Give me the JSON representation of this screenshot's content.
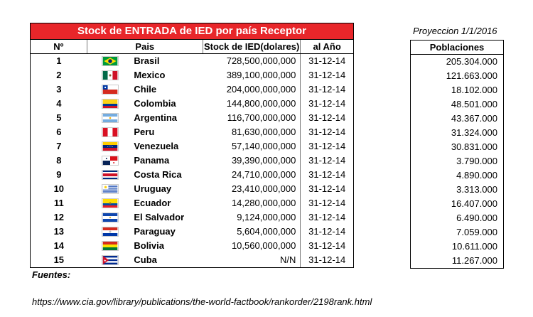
{
  "title": "Stock de ENTRADA de IED por país Receptor",
  "headers": {
    "num": "Nº",
    "pais": "Pais",
    "stock": "Stock de IED(dolares)",
    "anio": "al Año"
  },
  "rows": [
    {
      "num": "1",
      "pais": "Brasil",
      "flag": "brazil-flag-icon",
      "stock": "728,500,000,000",
      "anio": "31-12-14"
    },
    {
      "num": "2",
      "pais": "Mexico",
      "flag": "mexico-flag-icon",
      "stock": "389,100,000,000",
      "anio": "31-12-14"
    },
    {
      "num": "3",
      "pais": "Chile",
      "flag": "chile-flag-icon",
      "stock": "204,000,000,000",
      "anio": "31-12-14"
    },
    {
      "num": "4",
      "pais": "Colombia",
      "flag": "colombia-flag-icon",
      "stock": "144,800,000,000",
      "anio": "31-12-14"
    },
    {
      "num": "5",
      "pais": "Argentina",
      "flag": "argentina-flag-icon",
      "stock": "116,700,000,000",
      "anio": "31-12-14"
    },
    {
      "num": "6",
      "pais": "Peru",
      "flag": "peru-flag-icon",
      "stock": "81,630,000,000",
      "anio": "31-12-14"
    },
    {
      "num": "7",
      "pais": "Venezuela",
      "flag": "venezuela-flag-icon",
      "stock": "57,140,000,000",
      "anio": "31-12-14"
    },
    {
      "num": "8",
      "pais": "Panama",
      "flag": "panama-flag-icon",
      "stock": "39,390,000,000",
      "anio": "31-12-14"
    },
    {
      "num": "9",
      "pais": "Costa Rica",
      "flag": "costa-rica-flag-icon",
      "stock": "24,710,000,000",
      "anio": "31-12-14"
    },
    {
      "num": "10",
      "pais": "Uruguay",
      "flag": "uruguay-flag-icon",
      "stock": "23,410,000,000",
      "anio": "31-12-14"
    },
    {
      "num": "11",
      "pais": "Ecuador",
      "flag": "ecuador-flag-icon",
      "stock": "14,280,000,000",
      "anio": "31-12-14"
    },
    {
      "num": "12",
      "pais": "El Salvador",
      "flag": "el-salvador-flag-icon",
      "stock": "9,124,000,000",
      "anio": "31-12-14"
    },
    {
      "num": "13",
      "pais": "Paraguay",
      "flag": "paraguay-flag-icon",
      "stock": "5,604,000,000",
      "anio": "31-12-14"
    },
    {
      "num": "14",
      "pais": "Bolivia",
      "flag": "bolivia-flag-icon",
      "stock": "10,560,000,000",
      "anio": "31-12-14"
    },
    {
      "num": "15",
      "pais": "Cuba",
      "flag": "cuba-flag-icon",
      "stock": "N/N",
      "anio": "31-12-14"
    }
  ],
  "projection": {
    "label": "Proyeccion 1/1/2016",
    "header": "Poblaciones",
    "values": [
      "205.304.000",
      "121.663.000",
      "18.102.000",
      "48.501.000",
      "43.367.000",
      "31.324.000",
      "30.831.000",
      "3.790.000",
      "4.890.000",
      "3.313.000",
      "16.407.000",
      "6.490.000",
      "7.059.000",
      "10.611.000",
      "11.267.000"
    ]
  },
  "footer": {
    "fuentes": "Fuentes:",
    "url": "https://www.cia.gov/library/publications/the-world-factbook/rankorder/2198rank.html"
  },
  "colors": {
    "title_bg": "#e8262a",
    "title_text": "#ffffff"
  }
}
